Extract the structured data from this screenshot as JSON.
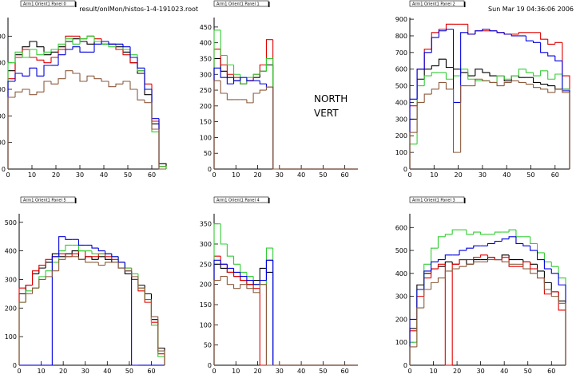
{
  "chart_data": [
    {
      "type": "histogram",
      "title": "Arm1 Orient1 Panel 0",
      "annotations": [
        "result/onlMon/histos-1-4-191023.root"
      ],
      "bins": [
        0,
        3,
        6,
        9,
        12,
        15,
        18,
        21,
        24,
        27,
        30,
        33,
        36,
        39,
        42,
        45,
        48,
        51,
        54,
        57,
        60,
        63,
        66
      ],
      "xlim": [
        0,
        66
      ],
      "xticks": [
        0,
        10,
        20,
        30,
        40,
        50,
        60
      ],
      "ylim": [
        0,
        570
      ],
      "yticks": [
        0,
        100,
        200,
        300,
        400,
        500
      ],
      "series": [
        {
          "color": "#000000",
          "values": [
            370,
            430,
            460,
            480,
            460,
            430,
            440,
            460,
            480,
            490,
            480,
            470,
            480,
            470,
            470,
            460,
            440,
            400,
            360,
            280,
            170,
            20
          ]
        },
        {
          "color": "#e00000",
          "values": [
            340,
            420,
            450,
            420,
            410,
            400,
            420,
            450,
            500,
            500,
            490,
            500,
            490,
            480,
            470,
            450,
            430,
            400,
            370,
            320,
            180,
            10
          ]
        },
        {
          "color": "#33cc33",
          "values": [
            400,
            440,
            420,
            450,
            430,
            440,
            450,
            470,
            490,
            470,
            490,
            500,
            480,
            470,
            460,
            470,
            450,
            430,
            370,
            300,
            140,
            10
          ]
        },
        {
          "color": "#0000dd",
          "values": [
            330,
            360,
            350,
            380,
            350,
            390,
            390,
            430,
            450,
            460,
            440,
            440,
            470,
            480,
            470,
            470,
            460,
            420,
            380,
            300,
            190,
            0
          ]
        },
        {
          "color": "#8b5a3c",
          "values": [
            270,
            290,
            300,
            280,
            290,
            330,
            320,
            340,
            370,
            360,
            330,
            350,
            340,
            330,
            310,
            320,
            330,
            300,
            260,
            250,
            150,
            0
          ]
        }
      ]
    },
    {
      "type": "histogram",
      "title": "Arm1 Orient1 Panel 1",
      "annotations": [
        "NORTH",
        "VERT"
      ],
      "bins": [
        0,
        3,
        6,
        9,
        12,
        15,
        18,
        21,
        24,
        27,
        30,
        33,
        36,
        39,
        42,
        45,
        48,
        51,
        54,
        57,
        60,
        63,
        66
      ],
      "xlim": [
        0,
        66
      ],
      "xticks": [
        0,
        10,
        20,
        30,
        40,
        50,
        60
      ],
      "ylim": [
        0,
        480
      ],
      "yticks": [
        0,
        50,
        100,
        150,
        200,
        250,
        300,
        350,
        400,
        450
      ],
      "series": [
        {
          "color": "#000000",
          "values": [
            350,
            310,
            290,
            280,
            270,
            280,
            290,
            310,
            330,
            0,
            0,
            0,
            0,
            0,
            0,
            0,
            0,
            0,
            0,
            0,
            0,
            0
          ]
        },
        {
          "color": "#e00000",
          "values": [
            380,
            330,
            300,
            290,
            270,
            280,
            300,
            330,
            410,
            0,
            0,
            0,
            0,
            0,
            0,
            0,
            0,
            0,
            0,
            0,
            0,
            0
          ]
        },
        {
          "color": "#33cc33",
          "values": [
            440,
            360,
            330,
            300,
            270,
            290,
            300,
            310,
            350,
            0,
            0,
            0,
            0,
            0,
            0,
            0,
            0,
            0,
            0,
            0,
            0,
            0
          ]
        },
        {
          "color": "#0000dd",
          "values": [
            320,
            290,
            270,
            280,
            290,
            280,
            280,
            270,
            260,
            0,
            0,
            0,
            0,
            0,
            0,
            0,
            0,
            0,
            0,
            0,
            0,
            0
          ]
        },
        {
          "color": "#8b5a3c",
          "values": [
            280,
            240,
            220,
            220,
            220,
            210,
            240,
            250,
            260,
            0,
            0,
            0,
            0,
            0,
            0,
            0,
            0,
            0,
            0,
            0,
            0,
            0
          ]
        }
      ]
    },
    {
      "type": "histogram",
      "title": "Arm1 Orient1 Panel 2",
      "annotations": [
        "Sun Mar 19 04:36:06 2006"
      ],
      "bins": [
        0,
        3,
        6,
        9,
        12,
        15,
        18,
        21,
        24,
        27,
        30,
        33,
        36,
        39,
        42,
        45,
        48,
        51,
        54,
        57,
        60,
        63,
        66
      ],
      "xlim": [
        0,
        66
      ],
      "xticks": [
        0,
        10,
        20,
        30,
        40,
        50,
        60
      ],
      "ylim": [
        0,
        910
      ],
      "yticks": [
        0,
        100,
        200,
        300,
        400,
        500,
        600,
        700,
        800,
        900
      ],
      "series": [
        {
          "color": "#000000",
          "values": [
            300,
            540,
            600,
            620,
            660,
            610,
            600,
            580,
            560,
            600,
            580,
            560,
            560,
            530,
            560,
            550,
            550,
            520,
            510,
            500,
            480,
            480
          ]
        },
        {
          "color": "#e00000",
          "values": [
            380,
            600,
            720,
            820,
            840,
            870,
            870,
            870,
            810,
            830,
            830,
            830,
            820,
            810,
            810,
            820,
            820,
            820,
            780,
            750,
            760,
            560
          ]
        },
        {
          "color": "#33cc33",
          "values": [
            150,
            500,
            560,
            580,
            580,
            540,
            560,
            600,
            540,
            530,
            530,
            520,
            560,
            540,
            560,
            600,
            580,
            560,
            590,
            540,
            570,
            480
          ]
        },
        {
          "color": "#0000dd",
          "values": [
            420,
            600,
            700,
            790,
            830,
            840,
            400,
            820,
            810,
            830,
            840,
            830,
            820,
            810,
            800,
            800,
            770,
            760,
            700,
            680,
            650,
            470
          ]
        },
        {
          "color": "#8b5a3c",
          "values": [
            220,
            400,
            450,
            480,
            520,
            480,
            100,
            500,
            500,
            540,
            530,
            520,
            500,
            520,
            530,
            520,
            510,
            490,
            480,
            460,
            480,
            460
          ]
        }
      ]
    },
    {
      "type": "histogram",
      "title": "Arm1 Orient1 Panel 5",
      "bins": [
        0,
        3,
        6,
        9,
        12,
        15,
        18,
        21,
        24,
        27,
        30,
        33,
        36,
        39,
        42,
        45,
        48,
        51,
        54,
        57,
        60,
        63,
        66
      ],
      "xlim": [
        0,
        66
      ],
      "xticks": [
        0,
        10,
        20,
        30,
        40,
        50,
        60
      ],
      "ylim": [
        0,
        530
      ],
      "yticks": [
        0,
        100,
        200,
        300,
        400,
        500
      ],
      "series": [
        {
          "color": "#000000",
          "values": [
            250,
            280,
            320,
            340,
            360,
            390,
            380,
            390,
            400,
            370,
            380,
            370,
            380,
            370,
            360,
            340,
            320,
            300,
            280,
            250,
            160,
            60
          ]
        },
        {
          "color": "#e00000",
          "values": [
            270,
            280,
            330,
            350,
            370,
            380,
            390,
            380,
            390,
            400,
            380,
            380,
            390,
            380,
            370,
            360,
            340,
            300,
            260,
            220,
            150,
            40
          ]
        },
        {
          "color": "#33cc33",
          "values": [
            220,
            260,
            270,
            310,
            330,
            360,
            400,
            420,
            420,
            400,
            400,
            390,
            390,
            390,
            380,
            360,
            340,
            320,
            270,
            230,
            140,
            30
          ]
        },
        {
          "color": "#0000dd",
          "values": [
            0,
            0,
            0,
            0,
            0,
            380,
            450,
            440,
            440,
            420,
            420,
            410,
            400,
            390,
            380,
            360,
            330,
            0,
            0,
            0,
            0,
            0
          ]
        },
        {
          "color": "#8b5a3c",
          "values": [
            220,
            250,
            270,
            300,
            310,
            330,
            370,
            380,
            380,
            370,
            360,
            360,
            350,
            360,
            360,
            340,
            330,
            310,
            270,
            230,
            170,
            50
          ]
        }
      ]
    },
    {
      "type": "histogram",
      "title": "Arm1 Orient1 Panel 4",
      "bins": [
        0,
        3,
        6,
        9,
        12,
        15,
        18,
        21,
        24,
        27,
        30,
        33,
        36,
        39,
        42,
        45,
        48,
        51,
        54,
        57,
        60,
        63,
        66
      ],
      "xlim": [
        0,
        66
      ],
      "xticks": [
        0,
        10,
        20,
        30,
        40,
        50,
        60
      ],
      "ylim": [
        0,
        375
      ],
      "yticks": [
        0,
        50,
        100,
        150,
        200,
        250,
        300,
        350
      ],
      "series": [
        {
          "color": "#000000",
          "values": [
            250,
            240,
            230,
            220,
            210,
            200,
            210,
            240,
            230,
            0,
            0,
            0,
            0,
            0,
            0,
            0,
            0,
            0,
            0,
            0,
            0,
            0
          ]
        },
        {
          "color": "#e00000",
          "values": [
            270,
            250,
            230,
            220,
            210,
            200,
            190,
            0,
            260,
            0,
            0,
            0,
            0,
            0,
            0,
            0,
            0,
            0,
            0,
            0,
            0,
            0
          ]
        },
        {
          "color": "#33cc33",
          "values": [
            350,
            300,
            270,
            250,
            230,
            220,
            200,
            200,
            290,
            0,
            0,
            0,
            0,
            0,
            0,
            0,
            0,
            0,
            0,
            0,
            0,
            0
          ]
        },
        {
          "color": "#0000dd",
          "values": [
            260,
            250,
            240,
            230,
            220,
            210,
            200,
            210,
            260,
            0,
            0,
            0,
            0,
            0,
            0,
            0,
            0,
            0,
            0,
            0,
            0,
            0
          ]
        },
        {
          "color": "#8b5a3c",
          "values": [
            210,
            220,
            200,
            190,
            200,
            190,
            180,
            200,
            0,
            0,
            0,
            0,
            0,
            0,
            0,
            0,
            0,
            0,
            0,
            0,
            0,
            0
          ]
        }
      ]
    },
    {
      "type": "histogram",
      "title": "Arm1 Orient1 Panel 3",
      "bins": [
        0,
        3,
        6,
        9,
        12,
        15,
        18,
        21,
        24,
        27,
        30,
        33,
        36,
        39,
        42,
        45,
        48,
        51,
        54,
        57,
        60,
        63,
        66
      ],
      "xlim": [
        0,
        66
      ],
      "xticks": [
        0,
        10,
        20,
        30,
        40,
        50,
        60
      ],
      "ylim": [
        0,
        660
      ],
      "yticks": [
        0,
        100,
        200,
        300,
        400,
        500,
        600
      ],
      "series": [
        {
          "color": "#000000",
          "values": [
            160,
            350,
            400,
            420,
            430,
            450,
            440,
            460,
            440,
            460,
            460,
            470,
            460,
            480,
            460,
            460,
            450,
            440,
            410,
            360,
            320,
            280
          ]
        },
        {
          "color": "#e00000",
          "values": [
            150,
            300,
            380,
            420,
            440,
            0,
            440,
            460,
            460,
            470,
            480,
            470,
            460,
            470,
            430,
            430,
            450,
            420,
            380,
            310,
            320,
            240
          ]
        },
        {
          "color": "#33cc33",
          "values": [
            100,
            330,
            440,
            510,
            560,
            570,
            590,
            590,
            570,
            580,
            570,
            570,
            580,
            580,
            590,
            560,
            560,
            530,
            490,
            450,
            430,
            380
          ]
        },
        {
          "color": "#0000dd",
          "values": [
            200,
            330,
            410,
            450,
            460,
            480,
            480,
            500,
            510,
            520,
            520,
            530,
            540,
            550,
            560,
            530,
            520,
            500,
            460,
            420,
            400,
            350
          ]
        },
        {
          "color": "#8b5a3c",
          "values": [
            80,
            250,
            330,
            360,
            380,
            410,
            420,
            430,
            440,
            450,
            450,
            460,
            460,
            450,
            440,
            440,
            420,
            400,
            380,
            330,
            300,
            270
          ]
        }
      ]
    }
  ]
}
